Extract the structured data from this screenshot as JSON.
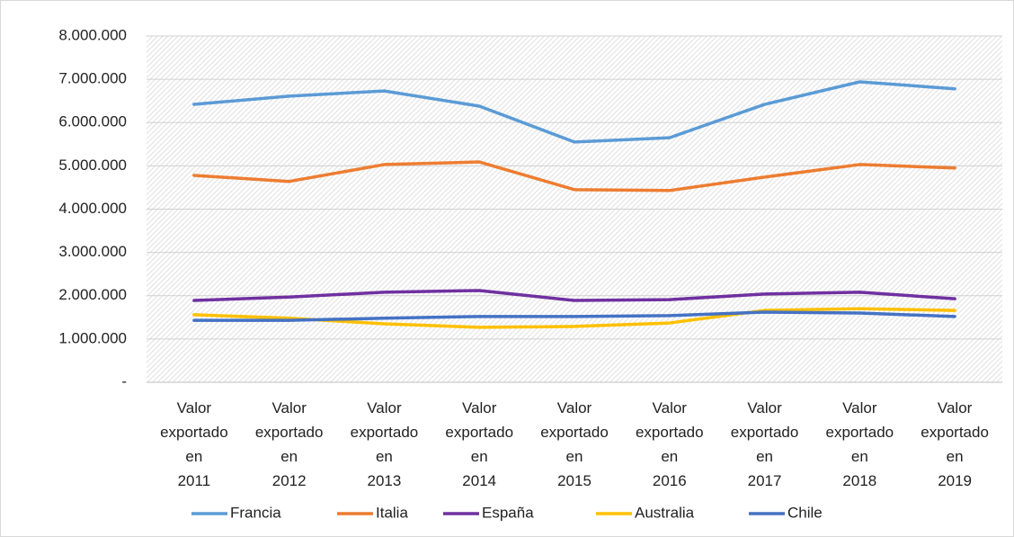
{
  "chart_data": {
    "type": "line",
    "categories": [
      "Valor exportado en 2011",
      "Valor exportado en 2012",
      "Valor exportado en 2013",
      "Valor exportado en 2014",
      "Valor exportado en 2015",
      "Valor exportado en 2016",
      "Valor exportado en 2017",
      "Valor exportado en 2018",
      "Valor exportado en 2019"
    ],
    "series": [
      {
        "name": "Francia",
        "color": "#5b9bd5",
        "values": [
          6420000,
          6610000,
          6730000,
          6380000,
          5550000,
          5650000,
          6420000,
          6940000,
          6780000
        ]
      },
      {
        "name": "Italia",
        "color": "#ed7d31",
        "values": [
          4780000,
          4640000,
          5030000,
          5090000,
          4450000,
          4430000,
          4740000,
          5030000,
          4950000
        ]
      },
      {
        "name": "España",
        "color": "#7030a0",
        "values": [
          1890000,
          1970000,
          2080000,
          2120000,
          1890000,
          1910000,
          2040000,
          2080000,
          1930000
        ]
      },
      {
        "name": "Australia",
        "color": "#ffc000",
        "values": [
          1560000,
          1480000,
          1350000,
          1270000,
          1290000,
          1370000,
          1660000,
          1700000,
          1660000
        ]
      },
      {
        "name": "Chile",
        "color": "#4472c4",
        "values": [
          1430000,
          1430000,
          1480000,
          1520000,
          1520000,
          1540000,
          1620000,
          1600000,
          1520000
        ]
      }
    ],
    "ylim": [
      0,
      8000000
    ],
    "yticks": [
      {
        "value": 0,
        "label": "-"
      },
      {
        "value": 1000000,
        "label": "1.000.000"
      },
      {
        "value": 2000000,
        "label": "2.000.000"
      },
      {
        "value": 3000000,
        "label": "3.000.000"
      },
      {
        "value": 4000000,
        "label": "4.000.000"
      },
      {
        "value": 5000000,
        "label": "5.000.000"
      },
      {
        "value": 6000000,
        "label": "6.000.000"
      },
      {
        "value": 7000000,
        "label": "7.000.000"
      },
      {
        "value": 8000000,
        "label": "8.000.000"
      }
    ],
    "grid": true,
    "legend": "bottom"
  }
}
